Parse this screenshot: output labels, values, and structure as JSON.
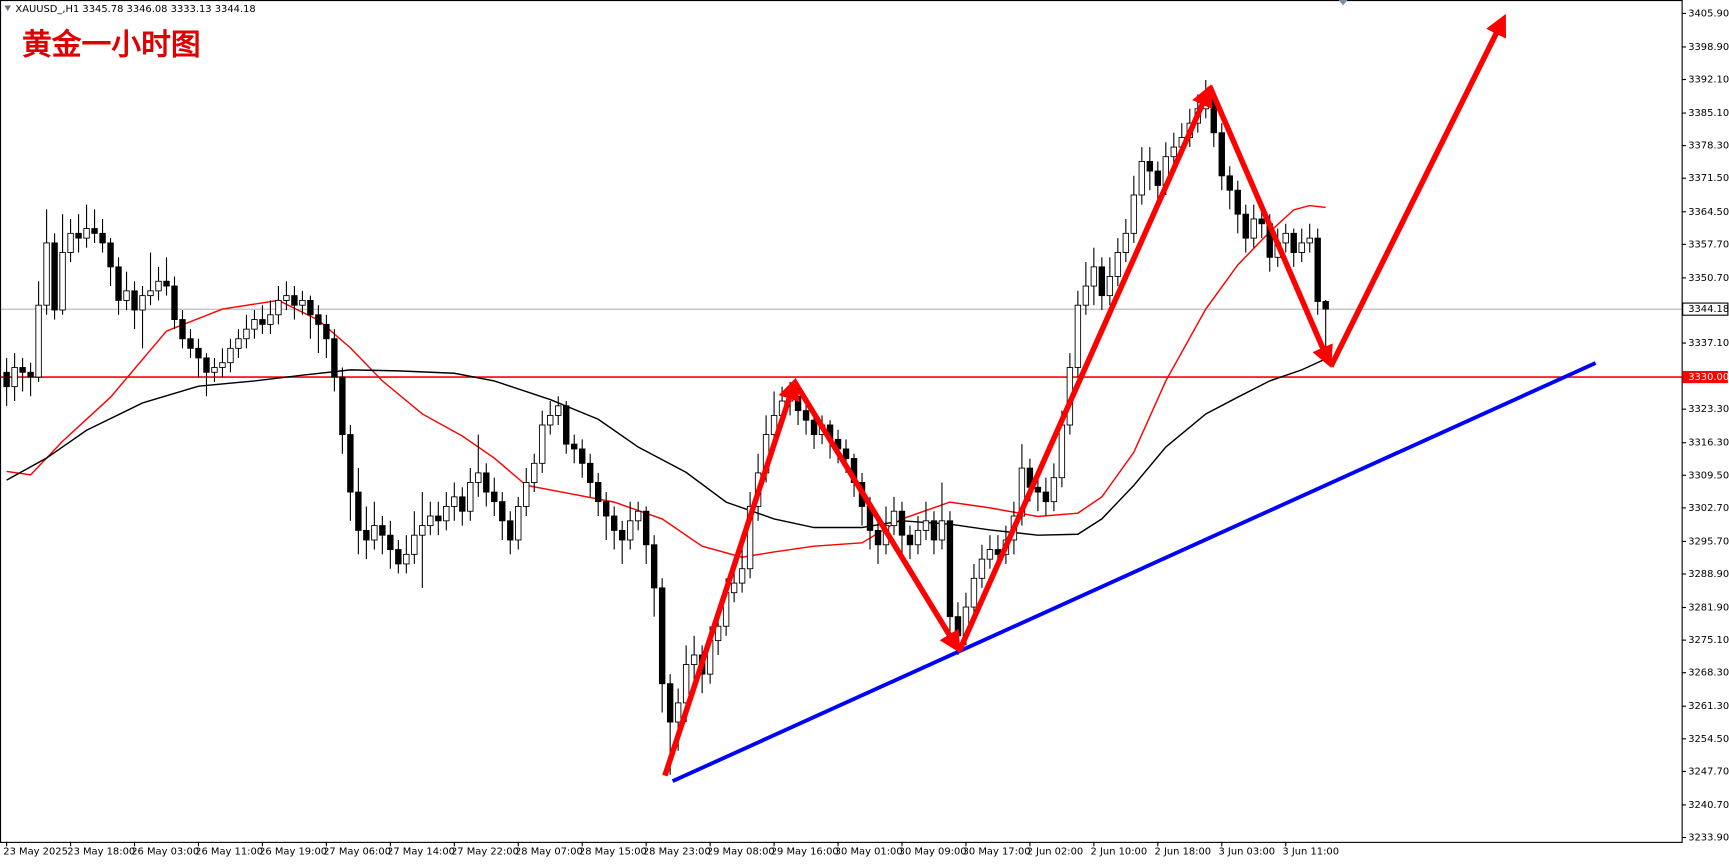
{
  "chart_data": {
    "type": "candlestick",
    "symbol": "XAUUSD_,H1",
    "title": "黄金一小时图",
    "up_color": "#ffffff",
    "down_color": "#000000",
    "grid": false,
    "ylim": [
      3233.0,
      3408.7
    ],
    "yticks": [
      {
        "value": 3405.9,
        "label": "3405.90"
      },
      {
        "value": 3398.9,
        "label": "3398.90"
      },
      {
        "value": 3392.1,
        "label": "3392.10"
      },
      {
        "value": 3385.1,
        "label": "3385.10"
      },
      {
        "value": 3378.3,
        "label": "3378.30"
      },
      {
        "value": 3371.5,
        "label": "3371.50"
      },
      {
        "value": 3364.5,
        "label": "3364.50"
      },
      {
        "value": 3357.7,
        "label": "3357.70"
      },
      {
        "value": 3350.7,
        "label": "3350.70"
      },
      {
        "value": 3337.1,
        "label": "3337.10"
      },
      {
        "value": 3323.3,
        "label": "3323.30"
      },
      {
        "value": 3316.3,
        "label": "3316.30"
      },
      {
        "value": 3309.5,
        "label": "3309.50"
      },
      {
        "value": 3302.7,
        "label": "3302.70"
      },
      {
        "value": 3295.7,
        "label": "3295.70"
      },
      {
        "value": 3288.9,
        "label": "3288.90"
      },
      {
        "value": 3281.9,
        "label": "3281.90"
      },
      {
        "value": 3275.1,
        "label": "3275.10"
      },
      {
        "value": 3268.3,
        "label": "3268.30"
      },
      {
        "value": 3261.3,
        "label": "3261.30"
      },
      {
        "value": 3254.5,
        "label": "3254.50"
      },
      {
        "value": 3247.7,
        "label": "3247.70"
      },
      {
        "value": 3240.7,
        "label": "3240.70"
      },
      {
        "value": 3233.9,
        "label": "3233.90"
      }
    ],
    "hlines": [
      {
        "value": 3330,
        "label": "3330.00",
        "color": "#ff0000"
      }
    ],
    "categories": [
      "23 May 2025",
      null,
      null,
      null,
      null,
      null,
      null,
      null,
      "23 May 18:00",
      null,
      null,
      null,
      null,
      null,
      null,
      null,
      "26 May 03:00",
      null,
      null,
      null,
      null,
      null,
      null,
      null,
      "26 May 11:00",
      null,
      null,
      null,
      null,
      null,
      null,
      null,
      "26 May 19:00",
      null,
      null,
      null,
      null,
      null,
      null,
      null,
      "27 May 06:00",
      null,
      null,
      null,
      null,
      null,
      null,
      null,
      "27 May 14:00",
      null,
      null,
      null,
      null,
      null,
      null,
      null,
      "27 May 22:00",
      null,
      null,
      null,
      null,
      null,
      null,
      null,
      "28 May 07:00",
      null,
      null,
      null,
      null,
      null,
      null,
      null,
      "28 May 15:00",
      null,
      null,
      null,
      null,
      null,
      null,
      null,
      "28 May 23:00",
      null,
      null,
      null,
      null,
      null,
      null,
      null,
      "29 May 08:00",
      null,
      null,
      null,
      null,
      null,
      null,
      null,
      "29 May 16:00",
      null,
      null,
      null,
      null,
      null,
      null,
      null,
      "30 May 01:00",
      null,
      null,
      null,
      null,
      null,
      null,
      null,
      "30 May 09:00",
      null,
      null,
      null,
      null,
      null,
      null,
      null,
      "30 May 17:00",
      null,
      null,
      null,
      null,
      null,
      null,
      null,
      "2 Jun 02:00",
      null,
      null,
      null,
      null,
      null,
      null,
      null,
      "2 Jun 10:00",
      null,
      null,
      null,
      null,
      null,
      null,
      null,
      "2 Jun 18:00",
      null,
      null,
      null,
      null,
      null,
      null,
      null,
      "3 Jun 03:00",
      null,
      null,
      null,
      null,
      null,
      null,
      null,
      "3 Jun 11:00",
      null,
      null,
      null,
      null,
      null
    ],
    "open": [
      3331,
      3328,
      3332,
      3331,
      3330,
      3345,
      3358,
      3344,
      3356,
      3360,
      3359,
      3361,
      3360,
      3358,
      3353,
      3346,
      3348,
      3344,
      3347,
      3348,
      3350,
      3349,
      3342,
      3338,
      3336,
      3334,
      3331,
      3332,
      3333,
      3336,
      3338,
      3340,
      3342,
      3341,
      3343,
      3346,
      3347,
      3345,
      3346,
      3343,
      3341,
      3338,
      3330,
      3318,
      3306,
      3298,
      3296,
      3299,
      3297,
      3294,
      3291,
      3293,
      3297,
      3299,
      3301,
      3300,
      3303,
      3305,
      3302,
      3308,
      3310,
      3306,
      3304,
      3300,
      3296,
      3303,
      3308,
      3312,
      3320,
      3322,
      3324,
      3316,
      3315,
      3312,
      3308,
      3304,
      3301,
      3298,
      3296,
      3300,
      3302,
      3295,
      3286,
      3266,
      3258,
      3262,
      3270,
      3272,
      3268,
      3275,
      3278,
      3285,
      3287,
      3290,
      3303,
      3310,
      3318,
      3322,
      3325,
      3326,
      3323,
      3321,
      3318,
      3320,
      3317,
      3315,
      3313,
      3308,
      3303,
      3298,
      3295,
      3299,
      3302,
      3297,
      3295,
      3298,
      3300,
      3296,
      3300,
      3280,
      3276,
      3282,
      3288,
      3292,
      3294,
      3293,
      3296,
      3301,
      3311,
      3307,
      3306,
      3304,
      3309,
      3320,
      3332,
      3345,
      3349,
      3353,
      3347,
      3351,
      3356,
      3360,
      3368,
      3375,
      3373,
      3370,
      3376,
      3378,
      3380,
      3383,
      3386,
      3388,
      3381,
      3372,
      3369,
      3364,
      3359,
      3363,
      3362,
      3355,
      3358,
      3360,
      3356,
      3358,
      3359,
      3345.78
    ],
    "high": [
      3334,
      3335,
      3334,
      3333,
      3350,
      3365,
      3360,
      3364,
      3363,
      3364,
      3366,
      3365,
      3363,
      3359,
      3355,
      3352,
      3350,
      3349,
      3356,
      3353,
      3355,
      3351,
      3344,
      3340,
      3338,
      3335,
      3334,
      3336,
      3338,
      3340,
      3343,
      3344,
      3345,
      3346,
      3349,
      3350,
      3349,
      3348,
      3347,
      3345,
      3343,
      3340,
      3332,
      3320,
      3311,
      3303,
      3304,
      3301,
      3300,
      3296,
      3297,
      3302,
      3306,
      3304,
      3304,
      3306,
      3308,
      3307,
      3311,
      3318,
      3312,
      3309,
      3306,
      3302,
      3305,
      3311,
      3314,
      3323,
      3325,
      3326,
      3325,
      3318,
      3317,
      3314,
      3310,
      3306,
      3303,
      3300,
      3304,
      3304,
      3303,
      3297,
      3288,
      3268,
      3265,
      3274,
      3276,
      3274,
      3278,
      3280,
      3288,
      3290,
      3296,
      3306,
      3314,
      3322,
      3327,
      3328,
      3329,
      3327,
      3325,
      3323,
      3322,
      3321,
      3319,
      3317,
      3314,
      3310,
      3305,
      3300,
      3303,
      3305,
      3304,
      3299,
      3301,
      3304,
      3302,
      3308,
      3302,
      3283,
      3285,
      3291,
      3295,
      3297,
      3297,
      3299,
      3304,
      3316,
      3313,
      3310,
      3309,
      3312,
      3323,
      3335,
      3348,
      3354,
      3357,
      3355,
      3355,
      3359,
      3363,
      3372,
      3378,
      3378,
      3375,
      3379,
      3381,
      3383,
      3386,
      3389,
      3392,
      3390,
      3383,
      3374,
      3371,
      3366,
      3366,
      3365,
      3364,
      3361,
      3362,
      3361,
      3361,
      3362,
      3361,
      3346.08
    ],
    "low": [
      3324,
      3325,
      3327,
      3326,
      3329,
      3343,
      3342,
      3343,
      3354,
      3356,
      3357,
      3358,
      3356,
      3349,
      3343,
      3344,
      3340,
      3336,
      3345,
      3346,
      3347,
      3340,
      3336,
      3334,
      3330,
      3326,
      3329,
      3330,
      3331,
      3334,
      3336,
      3338,
      3339,
      3339,
      3341,
      3344,
      3342,
      3343,
      3338,
      3335,
      3334,
      3327,
      3314,
      3300,
      3293,
      3292,
      3294,
      3293,
      3290,
      3289,
      3289,
      3291,
      3286,
      3297,
      3297,
      3298,
      3300,
      3299,
      3300,
      3305,
      3303,
      3301,
      3296,
      3293,
      3294,
      3301,
      3306,
      3310,
      3318,
      3320,
      3314,
      3312,
      3309,
      3305,
      3301,
      3296,
      3294,
      3291,
      3294,
      3298,
      3291,
      3280,
      3260,
      3247,
      3252,
      3258,
      3266,
      3264,
      3266,
      3272,
      3276,
      3283,
      3285,
      3288,
      3300,
      3308,
      3316,
      3320,
      3322,
      3320,
      3318,
      3315,
      3316,
      3313,
      3312,
      3310,
      3305,
      3299,
      3294,
      3291,
      3293,
      3297,
      3293,
      3292,
      3293,
      3296,
      3293,
      3294,
      3275,
      3272,
      3274,
      3280,
      3286,
      3290,
      3290,
      3291,
      3293,
      3299,
      3304,
      3302,
      3301,
      3302,
      3307,
      3318,
      3330,
      3343,
      3345,
      3344,
      3345,
      3349,
      3354,
      3358,
      3366,
      3369,
      3367,
      3368,
      3374,
      3376,
      3378,
      3381,
      3384,
      3378,
      3369,
      3365,
      3360,
      3356,
      3357,
      3359,
      3352,
      3353,
      3356,
      3353,
      3354,
      3356,
      3343,
      3333.13
    ],
    "close": [
      3328,
      3332,
      3331,
      3330,
      3345,
      3358,
      3344,
      3356,
      3360,
      3359,
      3361,
      3360,
      3358,
      3353,
      3346,
      3348,
      3344,
      3347,
      3348,
      3350,
      3349,
      3342,
      3338,
      3336,
      3334,
      3331,
      3332,
      3333,
      3336,
      3338,
      3340,
      3342,
      3341,
      3343,
      3346,
      3347,
      3345,
      3346,
      3343,
      3341,
      3338,
      3330,
      3318,
      3306,
      3298,
      3296,
      3299,
      3297,
      3294,
      3291,
      3293,
      3297,
      3299,
      3301,
      3300,
      3303,
      3305,
      3302,
      3308,
      3310,
      3306,
      3304,
      3300,
      3296,
      3303,
      3308,
      3312,
      3320,
      3322,
      3324,
      3316,
      3315,
      3312,
      3308,
      3304,
      3301,
      3298,
      3296,
      3300,
      3302,
      3295,
      3286,
      3266,
      3258,
      3262,
      3270,
      3272,
      3268,
      3275,
      3278,
      3285,
      3287,
      3290,
      3303,
      3310,
      3318,
      3322,
      3325,
      3326,
      3323,
      3321,
      3318,
      3320,
      3317,
      3315,
      3313,
      3308,
      3303,
      3298,
      3295,
      3299,
      3302,
      3297,
      3295,
      3298,
      3300,
      3296,
      3300,
      3280,
      3276,
      3282,
      3288,
      3292,
      3294,
      3293,
      3296,
      3301,
      3311,
      3307,
      3306,
      3304,
      3309,
      3320,
      3332,
      3345,
      3349,
      3353,
      3347,
      3351,
      3356,
      3360,
      3368,
      3375,
      3373,
      3370,
      3376,
      3378,
      3380,
      3383,
      3386,
      3388,
      3381,
      3372,
      3369,
      3364,
      3359,
      3363,
      3362,
      3355,
      3358,
      3360,
      3356,
      3358,
      3359,
      3345.78,
      3344.18
    ],
    "series": [
      {
        "color": "#ff0000",
        "x": [
          0,
          3,
          7,
          13,
          20,
          27,
          34,
          39,
          43,
          47,
          52,
          57,
          61,
          65,
          71,
          76,
          82,
          87,
          92,
          96,
          101,
          107,
          112,
          118,
          123,
          129,
          134,
          137,
          141,
          145,
          150,
          154,
          158,
          161,
          163,
          165
        ],
        "values": [
          3310.3,
          3309.6,
          3316.6,
          3325.8,
          3339.6,
          3344.2,
          3346.0,
          3341.9,
          3336.1,
          3329.2,
          3322.3,
          3317.7,
          3313.1,
          3307.4,
          3305.5,
          3303.9,
          3300.4,
          3294.7,
          3292.4,
          3293.5,
          3294.7,
          3295.4,
          3300.4,
          3303.9,
          3302.7,
          3300.9,
          3301.6,
          3305.0,
          3314.3,
          3329.2,
          3344.2,
          3353.4,
          3360.3,
          3364.9,
          3365.8,
          3365.4
        ]
      },
      {
        "color": "#000000",
        "x": [
          0,
          5,
          10,
          17,
          24,
          31,
          37,
          43,
          49,
          56,
          61,
          68,
          74,
          79,
          85,
          90,
          96,
          101,
          107,
          112,
          118,
          123,
          129,
          134,
          137,
          141,
          145,
          150,
          154,
          158,
          162,
          165
        ],
        "values": [
          3308.5,
          3313.1,
          3318.9,
          3324.6,
          3328.1,
          3329.2,
          3330.4,
          3331.5,
          3331.3,
          3330.8,
          3329.2,
          3325.3,
          3321.2,
          3315.4,
          3310.1,
          3303.9,
          3300.4,
          3298.6,
          3298.6,
          3300.0,
          3299.3,
          3298.1,
          3297.0,
          3297.2,
          3300.4,
          3307.4,
          3315.4,
          3322.3,
          3325.8,
          3329.2,
          3331.5,
          3333.8
        ]
      }
    ]
  }
}
